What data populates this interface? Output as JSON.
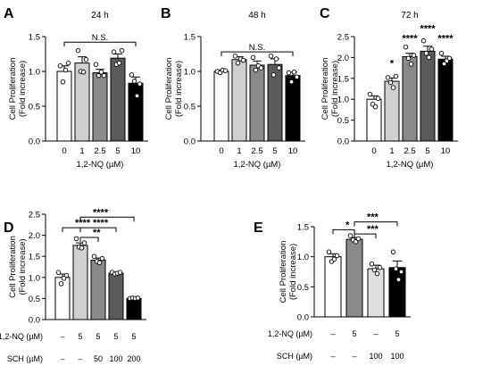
{
  "chart_data": [
    {
      "panel": "A",
      "type": "bar",
      "title": "24 h",
      "xlabel": "1,2-NQ (µM)",
      "ylabel": [
        "Cell Proliferation",
        "(Fold increase)"
      ],
      "categories": [
        "0",
        "1",
        "2.5",
        "5",
        "10"
      ],
      "ylim": [
        0,
        1.5
      ],
      "yticks": [
        "0.0",
        "0.5",
        "1.0",
        "1.5"
      ],
      "yticks_values": [
        0,
        0.5,
        1.0,
        1.5
      ],
      "colors": [
        "#ffffff",
        "#d0d0d0",
        "#8a8a8a",
        "#5a5a5a",
        "#000000"
      ],
      "series": [
        {
          "values": [
            1.0,
            1.12,
            0.98,
            1.19,
            0.83
          ],
          "errors": [
            0.08,
            0.09,
            0.05,
            0.06,
            0.09
          ],
          "points": [
            [
              1.08,
              0.85,
              1.02,
              1.12
            ],
            [
              1.3,
              1.0,
              0.99,
              1.17
            ],
            [
              1.1,
              0.94,
              0.99,
              0.94
            ],
            [
              1.28,
              1.1,
              1.12,
              1.3
            ],
            [
              0.95,
              0.86,
              0.65,
              0.82
            ]
          ]
        }
      ],
      "annotations": [
        {
          "text": "N.S.",
          "type": "bracket",
          "from": 0,
          "to": 4,
          "y": 1.42
        }
      ]
    },
    {
      "panel": "B",
      "type": "bar",
      "title": "48 h",
      "xlabel": "1,2-NQ (µM)",
      "ylabel": [
        "Cell Proliferation",
        "(Fold increase)"
      ],
      "categories": [
        "0",
        "1",
        "2.5",
        "5",
        "10"
      ],
      "ylim": [
        0,
        1.5
      ],
      "yticks": [
        "0.0",
        "0.5",
        "1.0",
        "1.5"
      ],
      "yticks_values": [
        0,
        0.5,
        1.0,
        1.5
      ],
      "colors": [
        "#ffffff",
        "#d0d0d0",
        "#8a8a8a",
        "#5a5a5a",
        "#000000"
      ],
      "series": [
        {
          "values": [
            1.0,
            1.17,
            1.09,
            1.1,
            0.94
          ],
          "errors": [
            0.02,
            0.04,
            0.06,
            0.08,
            0.05
          ],
          "points": [
            [
              1.0,
              0.98,
              1.02,
              1.01
            ],
            [
              1.22,
              1.12,
              1.18,
              1.16
            ],
            [
              1.2,
              1.02,
              1.08,
              1.05
            ],
            [
              1.22,
              0.95,
              1.18,
              1.05
            ],
            [
              0.98,
              0.85,
              0.99,
              0.92
            ]
          ]
        }
      ],
      "annotations": [
        {
          "text": "N.S.",
          "type": "bracket",
          "from": 0,
          "to": 4,
          "y": 1.28
        }
      ]
    },
    {
      "panel": "C",
      "type": "bar",
      "title": "72 h",
      "xlabel": "1,2-NQ (µM)",
      "ylabel": [
        "Cell Proliferation",
        "(Fold increase)"
      ],
      "categories": [
        "0",
        "1",
        "2.5",
        "5",
        "10"
      ],
      "ylim": [
        0,
        2.5
      ],
      "yticks": [
        "0.0",
        "0.5",
        "1.0",
        "1.5",
        "2.0",
        "2.5"
      ],
      "yticks_values": [
        0,
        0.5,
        1.0,
        1.5,
        2.0,
        2.5
      ],
      "colors": [
        "#ffffff",
        "#d0d0d0",
        "#8a8a8a",
        "#5a5a5a",
        "#000000"
      ],
      "series": [
        {
          "values": [
            1.0,
            1.43,
            2.02,
            2.15,
            1.96
          ],
          "errors": [
            0.08,
            0.08,
            0.08,
            0.12,
            0.07
          ],
          "points": [
            [
              1.12,
              0.88,
              0.82,
              1.02
            ],
            [
              1.52,
              1.4,
              1.28,
              1.55
            ],
            [
              2.25,
              1.98,
              1.84,
              2.05
            ],
            [
              2.4,
              2.1,
              2.0,
              2.2
            ],
            [
              2.1,
              1.85,
              1.92,
              1.98
            ]
          ]
        }
      ],
      "annotations": [
        {
          "text": "*",
          "type": "label",
          "bar": 1,
          "y": 1.78
        },
        {
          "text": "****",
          "type": "label",
          "bar": 2,
          "y": 2.38
        },
        {
          "text": "****",
          "type": "label",
          "bar": 3,
          "y": 2.62
        },
        {
          "text": "****",
          "type": "label",
          "bar": 4,
          "y": 2.38
        }
      ]
    },
    {
      "panel": "D",
      "type": "bar",
      "title": "",
      "xlabel": "",
      "ylabel": [
        "Cell Proliferation",
        "(Fold increase)"
      ],
      "condition_rows": [
        {
          "label": "1,2-NQ (µM)",
          "values": [
            "–",
            "5",
            "5",
            "5",
            "5"
          ]
        },
        {
          "label": "SCH (µM)",
          "values": [
            "–",
            "–",
            "50",
            "100",
            "200"
          ]
        }
      ],
      "ylim": [
        0,
        2.5
      ],
      "yticks": [
        "0.0",
        "0.5",
        "1.0",
        "1.5",
        "2.0",
        "2.5"
      ],
      "yticks_values": [
        0,
        0.5,
        1.0,
        1.5,
        2.0,
        2.5
      ],
      "colors": [
        "#ffffff",
        "#d0d0d0",
        "#8a8a8a",
        "#5a5a5a",
        "#000000"
      ],
      "series": [
        {
          "values": [
            1.0,
            1.76,
            1.41,
            1.1,
            0.5
          ],
          "errors": [
            0.08,
            0.06,
            0.05,
            0.03,
            0.02
          ],
          "points": [
            [
              1.12,
              0.85,
              0.98,
              1.05
            ],
            [
              1.92,
              1.72,
              1.7,
              1.82
            ],
            [
              1.5,
              1.38,
              1.35,
              1.45
            ],
            [
              1.12,
              1.08,
              1.1,
              1.12
            ],
            [
              0.5,
              0.51,
              0.5,
              0.51
            ]
          ]
        }
      ],
      "annotations": [
        {
          "text": "****",
          "type": "bracket",
          "from": 0,
          "to": 1,
          "y": 2.18
        },
        {
          "text": "**",
          "type": "bracket",
          "from": 1,
          "to": 2,
          "y": 1.95
        },
        {
          "text": "****",
          "type": "bracket",
          "from": 1,
          "to": 3,
          "y": 2.18
        },
        {
          "text": "****",
          "type": "bracket",
          "from": 1,
          "to": 4,
          "y": 2.43
        }
      ]
    },
    {
      "panel": "E",
      "type": "bar",
      "title": "",
      "xlabel": "",
      "ylabel": [
        "Cell Proliferation",
        "(Fold increase)"
      ],
      "condition_rows": [
        {
          "label": "1,2-NQ (µM)",
          "values": [
            "–",
            "5",
            "–",
            "5"
          ]
        },
        {
          "label": "SCH (µM)",
          "values": [
            "–",
            "–",
            "100",
            "100"
          ]
        }
      ],
      "ylim": [
        0,
        1.5
      ],
      "yticks": [
        "0.0",
        "0.5",
        "1.0",
        "1.5"
      ],
      "yticks_values": [
        0,
        0.5,
        1.0,
        1.5
      ],
      "colors": [
        "#ffffff",
        "#8a8a8a",
        "#e0e0e0",
        "#000000"
      ],
      "series": [
        {
          "values": [
            1.0,
            1.29,
            0.8,
            0.82
          ],
          "errors": [
            0.05,
            0.03,
            0.06,
            0.11
          ],
          "points": [
            [
              1.08,
              0.92,
              0.96,
              1.02
            ],
            [
              1.35,
              1.28,
              1.25,
              1.3
            ],
            [
              0.88,
              0.78,
              0.72,
              0.82
            ],
            [
              1.08,
              0.8,
              0.62,
              0.75
            ]
          ]
        }
      ],
      "annotations": [
        {
          "text": "*",
          "type": "bracket",
          "from": 0,
          "to": 1,
          "y": 1.45
        },
        {
          "text": "***",
          "type": "bracket",
          "from": 1,
          "to": 2,
          "y": 1.38
        },
        {
          "text": "***",
          "type": "bracket",
          "from": 1,
          "to": 3,
          "y": 1.58
        }
      ]
    }
  ]
}
